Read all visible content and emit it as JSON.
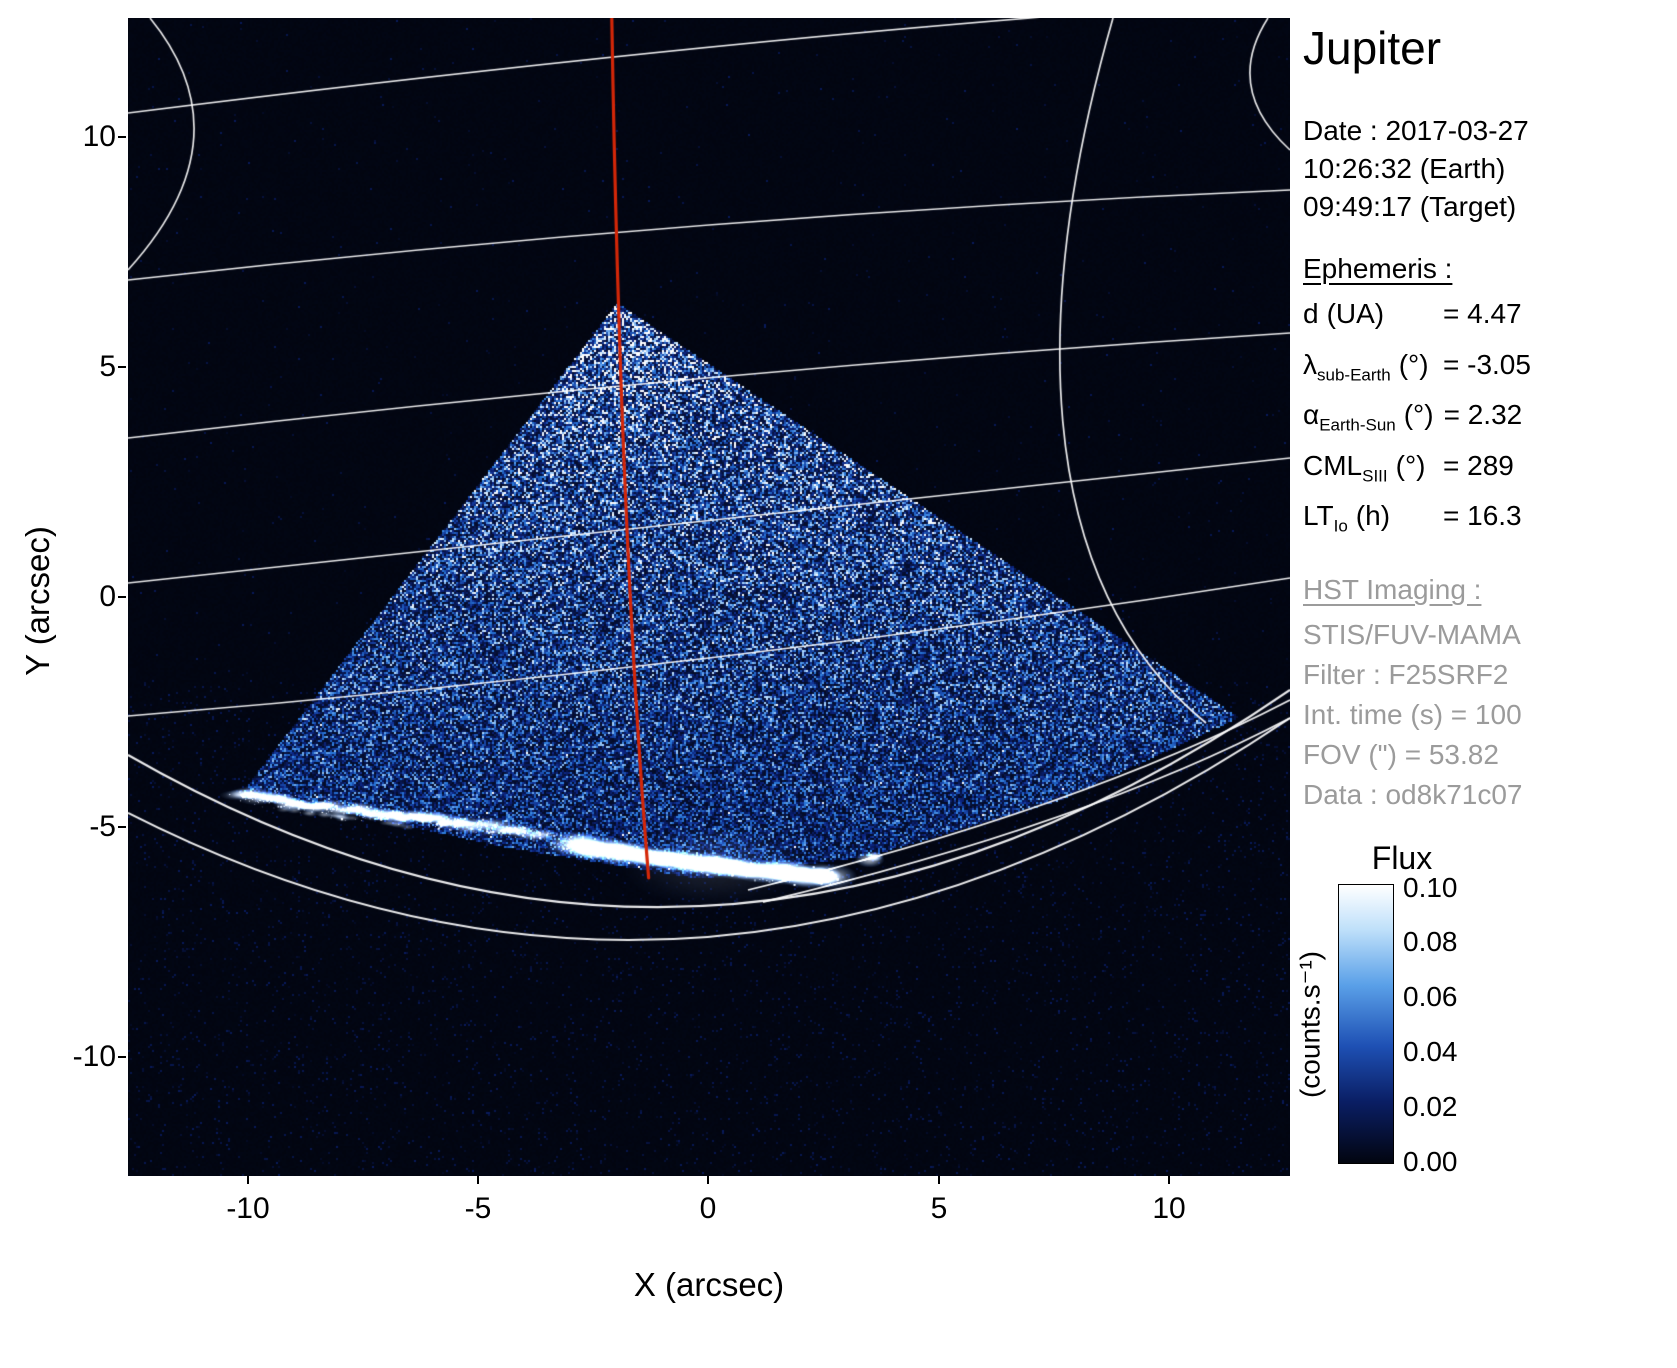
{
  "title": "Jupiter",
  "observation": {
    "date_line": "Date : 2017-03-27",
    "time_earth": "10:26:32 (Earth)",
    "time_target": "09:49:17 (Target)"
  },
  "ephemeris": {
    "heading": "Ephemeris :",
    "entries": [
      {
        "sym": "d",
        "sub": "",
        "unit": "(UA)",
        "val": "= 4.47"
      },
      {
        "sym": "λ",
        "sub": "sub-Earth",
        "unit": "(°)",
        "val": "= -3.05"
      },
      {
        "sym": "α",
        "sub": "Earth-Sun",
        "unit": "(°)",
        "val": "= 2.32"
      },
      {
        "sym": "CML",
        "sub": "SIII",
        "unit": "(°)",
        "val": "= 289"
      },
      {
        "sym": "LT",
        "sub": "Io",
        "unit": "(h)",
        "val": "= 16.3"
      }
    ]
  },
  "hst": {
    "heading": "HST Imaging :",
    "lines": [
      "STIS/FUV-MAMA",
      "Filter : F25SRF2",
      "Int. time (s) = 100",
      "FOV (\") = 53.82",
      "Data : od8k71c07"
    ]
  },
  "axes": {
    "xlabel": "X (arcsec)",
    "ylabel": "Y (arcsec)",
    "x_tick_labels": [
      "-10",
      "-5",
      "0",
      "5",
      "10"
    ],
    "y_tick_labels": [
      "10",
      "5",
      "0",
      "-5",
      "-10"
    ]
  },
  "colorbar": {
    "title": "Flux",
    "unit": "(counts.s⁻¹)",
    "tick_labels": [
      "0.10",
      "0.08",
      "0.06",
      "0.04",
      "0.02",
      "0.00"
    ]
  },
  "chart_data": {
    "type": "heatmap",
    "title": "Jupiter — HST STIS/FUV-MAMA far-UV image with SIII graticule and CML",
    "xlabel": "X (arcsec)",
    "ylabel": "Y (arcsec)",
    "xlim": [
      -12.6,
      12.6
    ],
    "ylim": [
      -12.6,
      12.6
    ],
    "x_ticks": [
      -10,
      -5,
      0,
      5,
      10
    ],
    "y_ticks": [
      10,
      5,
      0,
      -5,
      -10
    ],
    "flux_scale_counts_per_s": {
      "min": 0.0,
      "max": 0.1,
      "colorbar_ticks": [
        0.1,
        0.08,
        0.06,
        0.04,
        0.02,
        0.0
      ]
    },
    "ephemeris_values": {
      "d_UA": 4.47,
      "lambda_subEarth_deg": -3.05,
      "alpha_EarthSun_deg": 2.32,
      "CML_SIII_deg": 289,
      "LT_Io_h": 16.3
    },
    "features": {
      "wedge_polygon": [
        [
          -2.0,
          6.4
        ],
        [
          11.5,
          -2.6
        ],
        [
          7.6,
          -4.4
        ],
        [
          3.5,
          -5.6
        ],
        [
          -0.2,
          -6.1
        ],
        [
          -4.5,
          -5.4
        ],
        [
          -8.2,
          -4.6
        ],
        [
          -10.2,
          -4.3
        ]
      ],
      "auroral_arc": [
        [
          -10.2,
          -4.3
        ],
        [
          -7.2,
          -4.7
        ],
        [
          -3.9,
          -5.1
        ],
        [
          -2.9,
          -5.4
        ],
        [
          -0.2,
          -5.8
        ],
        [
          2.7,
          -6.1
        ]
      ],
      "aurora_spot": [
        3.5,
        -5.7
      ],
      "central_meridian": [
        [
          -2.1,
          12.6
        ],
        [
          -2.0,
          6.5
        ],
        [
          -1.8,
          0.0
        ],
        [
          -1.3,
          -6.1
        ]
      ]
    }
  }
}
